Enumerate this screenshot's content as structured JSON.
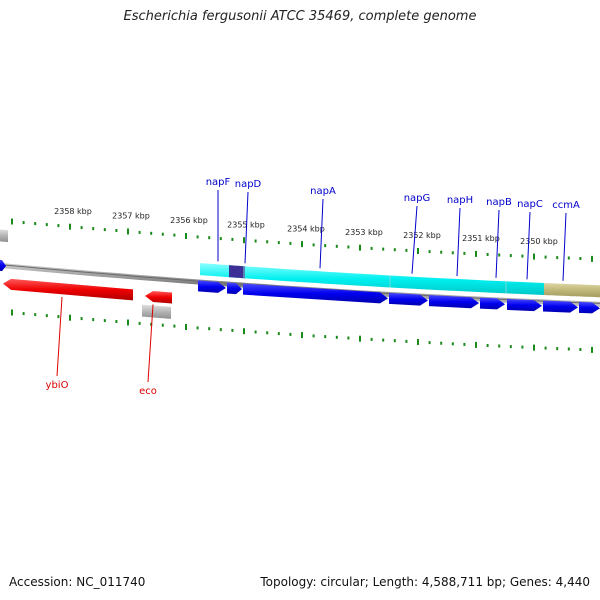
{
  "title": "Escherichia fergusonii ATCC 35469, complete genome",
  "footer": {
    "accession": "Accession: NC_011740",
    "summary": "Topology: circular; Length: 4,588,711 bp; Genes: 4,440"
  },
  "scale": {
    "unit": "kbp",
    "tick_labels": [
      "2358 kbp",
      "2357 kbp",
      "2356 kbp",
      "2355 kbp",
      "2354 kbp",
      "2353 kbp",
      "2352 kbp",
      "2351 kbp",
      "2350 kbp"
    ]
  },
  "gene_labels": {
    "top": [
      "napF",
      "napD",
      "napA",
      "napG",
      "napH",
      "napB",
      "napC",
      "ccmA"
    ],
    "bottom": [
      "ybiO",
      "eco"
    ]
  },
  "colors": {
    "label_top": "#0000cc",
    "label_bottom": "#dd0000",
    "gene_forward": "#0000ee",
    "gene_reverse": "#ee0000",
    "operon": "#00ffff",
    "operon_alt": "#c0b878",
    "highlight": "#3c2f96",
    "pseudo": "#b0b0b0",
    "tick": "#1a8a1a",
    "backbone": "#808080"
  }
}
